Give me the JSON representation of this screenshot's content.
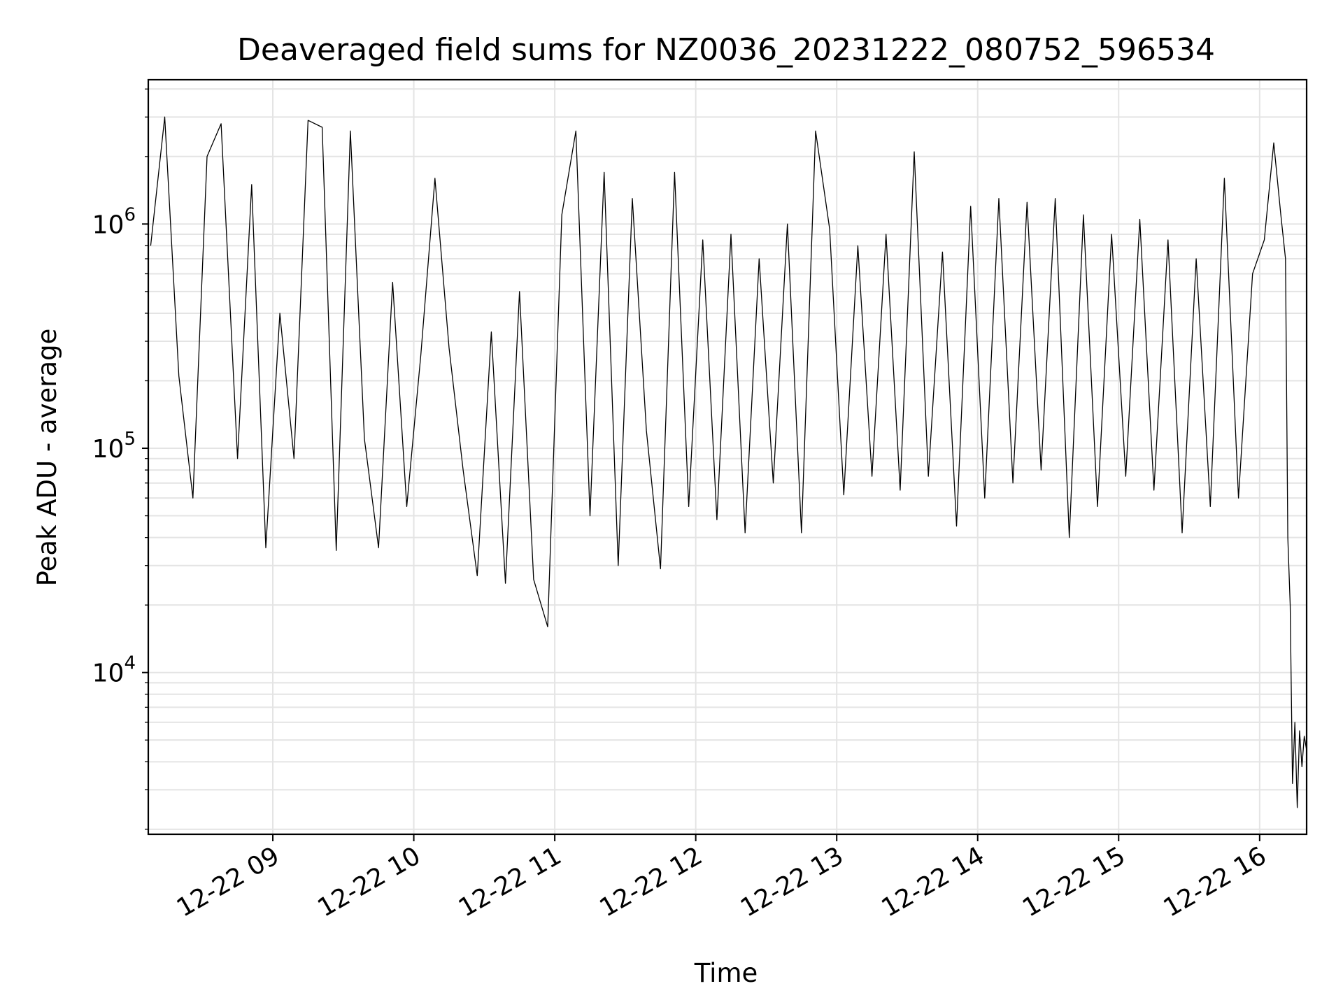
{
  "chart_data": {
    "type": "line",
    "title": "Deaveraged field sums for NZ0036_20231222_080752_596534",
    "xlabel": "Time",
    "ylabel": "Peak ADU - average",
    "yscale": "log",
    "xlim": [
      "2023-12-22 08:07",
      "2023-12-22 16:20"
    ],
    "ylim": [
      1900,
      4400000
    ],
    "grid": true,
    "x_ticks": [
      "12-22 09",
      "12-22 10",
      "12-22 11",
      "12-22 12",
      "12-22 13",
      "12-22 14",
      "12-22 15",
      "12-22 16"
    ],
    "y_ticks": [
      {
        "value": 10000,
        "base": "10",
        "exp": "4"
      },
      {
        "value": 100000,
        "base": "10",
        "exp": "5"
      },
      {
        "value": 1000000,
        "base": "10",
        "exp": "6"
      }
    ],
    "line_color": "#000000",
    "series": [
      {
        "x": [
          "2023-12-22 08:08",
          "2023-12-22 08:14",
          "2023-12-22 08:20",
          "2023-12-22 08:26",
          "2023-12-22 08:32",
          "2023-12-22 08:38",
          "2023-12-22 08:45",
          "2023-12-22 08:51",
          "2023-12-22 08:57",
          "2023-12-22 09:03",
          "2023-12-22 09:09",
          "2023-12-22 09:15",
          "2023-12-22 09:21",
          "2023-12-22 09:27",
          "2023-12-22 09:33",
          "2023-12-22 09:39",
          "2023-12-22 09:45",
          "2023-12-22 09:51",
          "2023-12-22 09:57",
          "2023-12-22 10:03",
          "2023-12-22 10:09",
          "2023-12-22 10:15",
          "2023-12-22 10:21",
          "2023-12-22 10:27",
          "2023-12-22 10:33",
          "2023-12-22 10:39",
          "2023-12-22 10:45",
          "2023-12-22 10:51",
          "2023-12-22 10:57",
          "2023-12-22 11:03",
          "2023-12-22 11:09",
          "2023-12-22 11:15",
          "2023-12-22 11:21",
          "2023-12-22 11:27",
          "2023-12-22 11:33",
          "2023-12-22 11:39",
          "2023-12-22 11:45",
          "2023-12-22 11:51",
          "2023-12-22 11:57",
          "2023-12-22 12:03",
          "2023-12-22 12:09",
          "2023-12-22 12:15",
          "2023-12-22 12:21",
          "2023-12-22 12:27",
          "2023-12-22 12:33",
          "2023-12-22 12:39",
          "2023-12-22 12:45",
          "2023-12-22 12:51",
          "2023-12-22 12:57",
          "2023-12-22 13:03",
          "2023-12-22 13:09",
          "2023-12-22 13:15",
          "2023-12-22 13:21",
          "2023-12-22 13:27",
          "2023-12-22 13:33",
          "2023-12-22 13:39",
          "2023-12-22 13:45",
          "2023-12-22 13:51",
          "2023-12-22 13:57",
          "2023-12-22 14:03",
          "2023-12-22 14:09",
          "2023-12-22 14:15",
          "2023-12-22 14:21",
          "2023-12-22 14:27",
          "2023-12-22 14:33",
          "2023-12-22 14:39",
          "2023-12-22 14:45",
          "2023-12-22 14:51",
          "2023-12-22 14:57",
          "2023-12-22 15:03",
          "2023-12-22 15:09",
          "2023-12-22 15:15",
          "2023-12-22 15:21",
          "2023-12-22 15:27",
          "2023-12-22 15:33",
          "2023-12-22 15:39",
          "2023-12-22 15:45",
          "2023-12-22 15:51",
          "2023-12-22 15:57",
          "2023-12-22 16:02",
          "2023-12-22 16:06",
          "2023-12-22 16:09",
          "2023-12-22 16:11",
          "2023-12-22 16:12",
          "2023-12-22 16:13",
          "2023-12-22 16:14",
          "2023-12-22 16:15",
          "2023-12-22 16:16",
          "2023-12-22 16:17",
          "2023-12-22 16:18",
          "2023-12-22 16:19",
          "2023-12-22 16:20"
        ],
        "y": [
          800000,
          3000000,
          210000,
          60000,
          2000000,
          2800000,
          90000,
          1500000,
          36000,
          400000,
          90000,
          2900000,
          2700000,
          35000,
          2600000,
          110000,
          36000,
          550000,
          55000,
          260000,
          1600000,
          280000,
          80000,
          27000,
          330000,
          25000,
          500000,
          26000,
          16000,
          1100000,
          2600000,
          50000,
          1700000,
          30000,
          1300000,
          120000,
          29000,
          1700000,
          55000,
          850000,
          48000,
          900000,
          42000,
          700000,
          70000,
          1000000,
          42000,
          2600000,
          950000,
          62000,
          800000,
          75000,
          900000,
          65000,
          2100000,
          75000,
          750000,
          45000,
          1200000,
          60000,
          1300000,
          70000,
          1250000,
          80000,
          1300000,
          40000,
          1100000,
          55000,
          900000,
          75000,
          1050000,
          65000,
          850000,
          42000,
          700000,
          55000,
          1600000,
          60000,
          600000,
          850000,
          2300000,
          1100000,
          700000,
          40000,
          20000,
          3200,
          6000,
          2500,
          5500,
          3800,
          5200,
          4500
        ]
      }
    ]
  }
}
